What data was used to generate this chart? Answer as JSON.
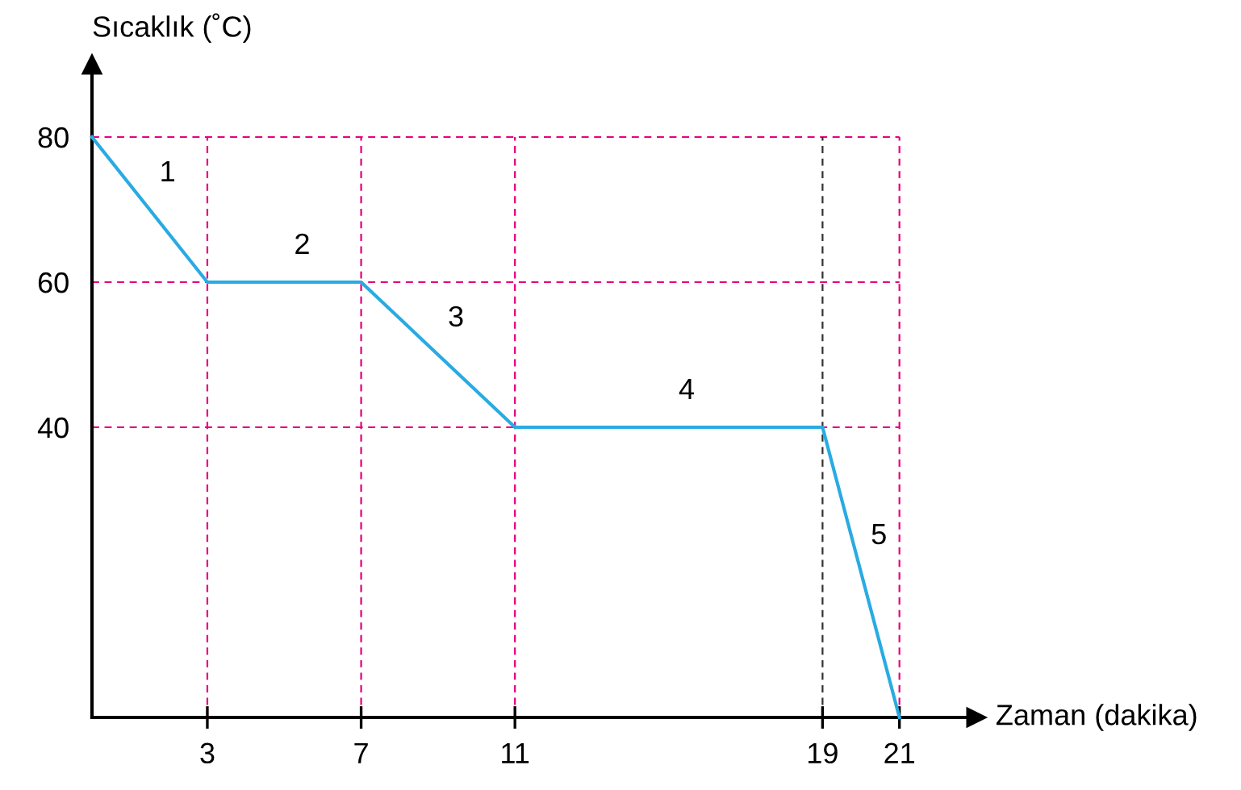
{
  "chart_data": {
    "type": "line",
    "xlabel": "Zaman (dakika)",
    "ylabel": "Sıcaklık (˚C)",
    "x": [
      0,
      3,
      7,
      11,
      19,
      21
    ],
    "series": [
      {
        "color": "#29abe2",
        "values": [
          80,
          60,
          60,
          40,
          40,
          0
        ]
      }
    ],
    "xlim": [
      0,
      23
    ],
    "ylim": [
      0,
      90
    ],
    "xticks": [
      3,
      7,
      11,
      19,
      21
    ],
    "yticks": [
      40,
      60,
      80
    ],
    "ref_lines": [
      {
        "axis": "y",
        "value": 80,
        "color": "#e6007e",
        "line_style": "dashed"
      },
      {
        "axis": "y",
        "value": 60,
        "color": "#e6007e",
        "line_style": "dashed"
      },
      {
        "axis": "y",
        "value": 40,
        "color": "#e6007e",
        "line_style": "dashed"
      },
      {
        "axis": "x",
        "value": 3,
        "color": "#e6007e",
        "line_style": "dashed"
      },
      {
        "axis": "x",
        "value": 7,
        "color": "#e6007e",
        "line_style": "dashed"
      },
      {
        "axis": "x",
        "value": 11,
        "color": "#e6007e",
        "line_style": "dashed"
      },
      {
        "axis": "x",
        "value": 19,
        "color": "#333333",
        "line_style": "dashed"
      },
      {
        "axis": "x",
        "value": 21,
        "color": "#e6007e",
        "line_style": "dashed"
      }
    ],
    "annotations": [
      "1",
      "2",
      "3",
      "4",
      "5"
    ],
    "grid": false,
    "legend": false,
    "marker": "none",
    "line_style": "solid"
  }
}
